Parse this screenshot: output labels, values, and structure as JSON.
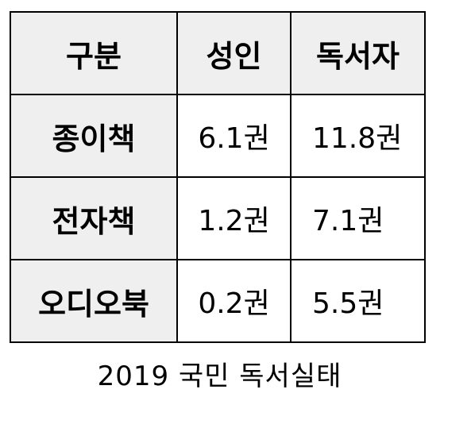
{
  "table": {
    "headers": [
      "구분",
      "성인",
      "독서자"
    ],
    "rows": [
      {
        "label": "종이책",
        "adult": "6.1권",
        "reader": "11.8권"
      },
      {
        "label": "전자책",
        "adult": "1.2권",
        "reader": "7.1권"
      },
      {
        "label": "오디오북",
        "adult": "0.2권",
        "reader": "5.5권"
      }
    ]
  },
  "caption": "2019 국민 독서실태",
  "colors": {
    "header_background": "#efefef",
    "cell_background": "#ffffff",
    "border": "#000000"
  }
}
